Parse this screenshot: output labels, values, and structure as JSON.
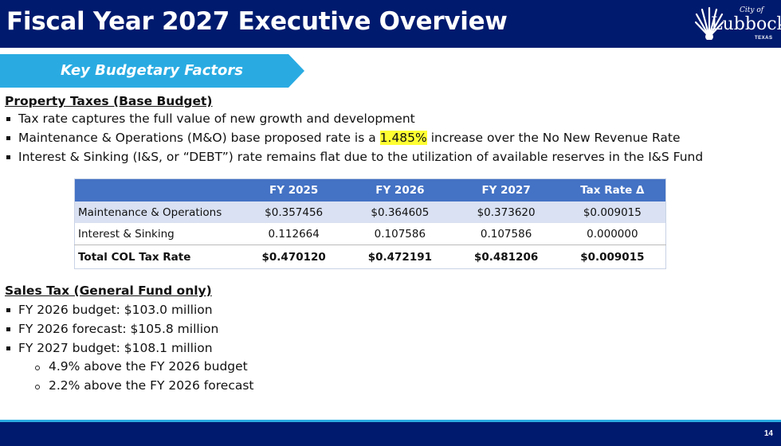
{
  "header": {
    "title": "Fiscal Year 2027 Executive Overview",
    "logo": {
      "city_prefix": "City of",
      "name": "Lubbock",
      "state": "TEXAS",
      "icon": "sunburst-logo-icon"
    }
  },
  "colors": {
    "header_bg": "#001a6e",
    "banner": "#29abe2",
    "table_header": "#4472c4",
    "table_row_alt": "#d9e1f2",
    "highlight": "#ffff33"
  },
  "subtitle": "Key Budgetary Factors",
  "property": {
    "heading": "Property Taxes (Base Budget)",
    "bullets": [
      "Tax rate captures the full value of new growth and development",
      {
        "before": "Maintenance & Operations (M&O) base proposed rate is a ",
        "highlight": "1.485%",
        "after": " increase over the No New Revenue Rate"
      },
      "Interest & Sinking (I&S, or “DEBT”) rate remains flat due to the utilization of available reserves in the I&S Fund"
    ]
  },
  "table": {
    "headers": [
      "",
      "FY 2025",
      "FY 2026",
      "FY 2027",
      "Tax Rate Δ"
    ],
    "rows": [
      [
        "Maintenance & Operations",
        "$0.357456",
        "$0.364605",
        "$0.373620",
        "$0.009015"
      ],
      [
        "Interest & Sinking",
        "0.112664",
        "0.107586",
        "0.107586",
        "0.000000"
      ],
      [
        "Total COL Tax Rate",
        "$0.470120",
        "$0.472191",
        "$0.481206",
        "$0.009015"
      ]
    ]
  },
  "sales": {
    "heading": "Sales Tax (General Fund only)",
    "bullets": [
      "FY 2026 budget: $103.0 million",
      "FY 2026 forecast: $105.8 million",
      "FY 2027 budget: $108.1 million"
    ],
    "sub_bullets": [
      "4.9% above the FY 2026 budget",
      "2.2% above the FY 2026 forecast"
    ]
  },
  "footer": {
    "page_number": "14"
  }
}
